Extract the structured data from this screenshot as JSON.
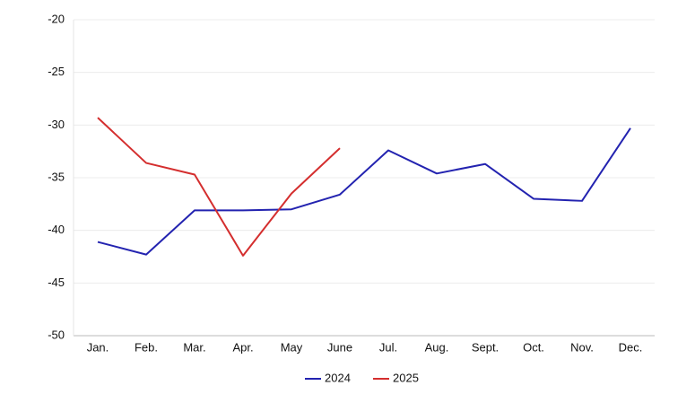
{
  "chart_data": {
    "type": "line",
    "categories": [
      "Jan.",
      "Feb.",
      "Mar.",
      "Apr.",
      "May",
      "June",
      "Jul.",
      "Aug.",
      "Sept.",
      "Oct.",
      "Nov.",
      "Dec."
    ],
    "series": [
      {
        "name": "2024",
        "color": "#2323b0",
        "values": [
          -41.1,
          -42.3,
          -38.1,
          -38.1,
          -38.0,
          -36.6,
          -32.4,
          -34.6,
          -33.7,
          -37.0,
          -37.2,
          -30.3
        ]
      },
      {
        "name": "2025",
        "color": "#d42e2e",
        "values": [
          -29.3,
          -33.6,
          -34.7,
          -42.4,
          -36.5,
          -32.2,
          null,
          null,
          null,
          null,
          null,
          null
        ]
      }
    ],
    "ylim": [
      -50,
      -20
    ],
    "yticks": [
      -50,
      -45,
      -40,
      -35,
      -30,
      -25,
      -20
    ],
    "grid": true,
    "legend": "bottom"
  }
}
